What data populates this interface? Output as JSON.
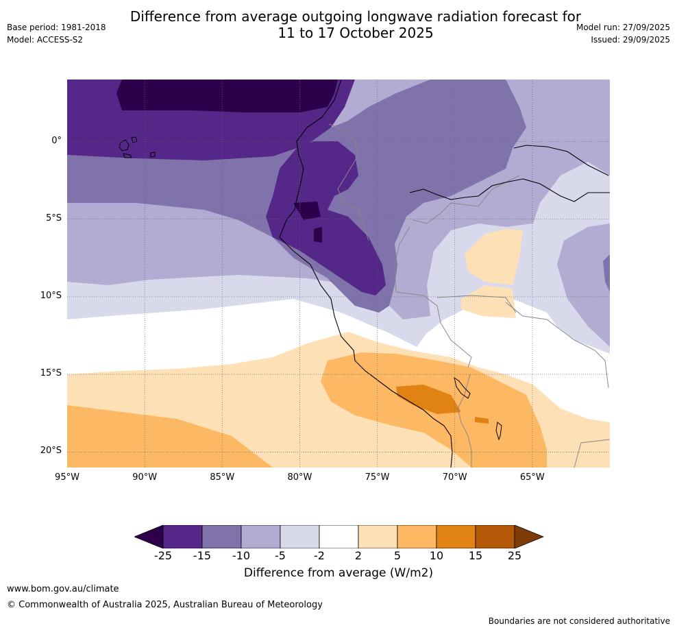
{
  "title": {
    "line1": "Difference from average outgoing longwave radiation forecast for",
    "line2": "11 to 17 October 2025"
  },
  "meta": {
    "base_period": "Base period: 1981-2018",
    "model": "Model: ACCESS-S2",
    "model_run": "Model run: 27/09/2025",
    "issued": "Issued: 29/09/2025"
  },
  "axes": {
    "x_ticks": [
      "95°W",
      "90°W",
      "85°W",
      "80°W",
      "75°W",
      "70°W",
      "65°W"
    ],
    "y_ticks": [
      "0°",
      "5°S",
      "10°S",
      "15°S",
      "20°S"
    ],
    "lon_range": [
      -95,
      -60
    ],
    "lat_range": [
      -21,
      4
    ],
    "grid": "dotted"
  },
  "colorbar": {
    "title": "Difference from average (W/m2)",
    "labels": [
      "-25",
      "-15",
      "-10",
      "-5",
      "-2",
      "2",
      "5",
      "10",
      "15",
      "25"
    ],
    "colors": [
      "#2d004b",
      "#542788",
      "#8073ac",
      "#b2abd2",
      "#d8daeb",
      "#ffffff",
      "#fee0b6",
      "#fdb863",
      "#e08214",
      "#b35806",
      "#7f3b08"
    ]
  },
  "footer": {
    "url": "www.bom.gov.au/climate",
    "copyright": "© Commonwealth of Australia 2025, Australian Bureau of Meteorology",
    "note": "Boundaries are not considered authoritative"
  }
}
